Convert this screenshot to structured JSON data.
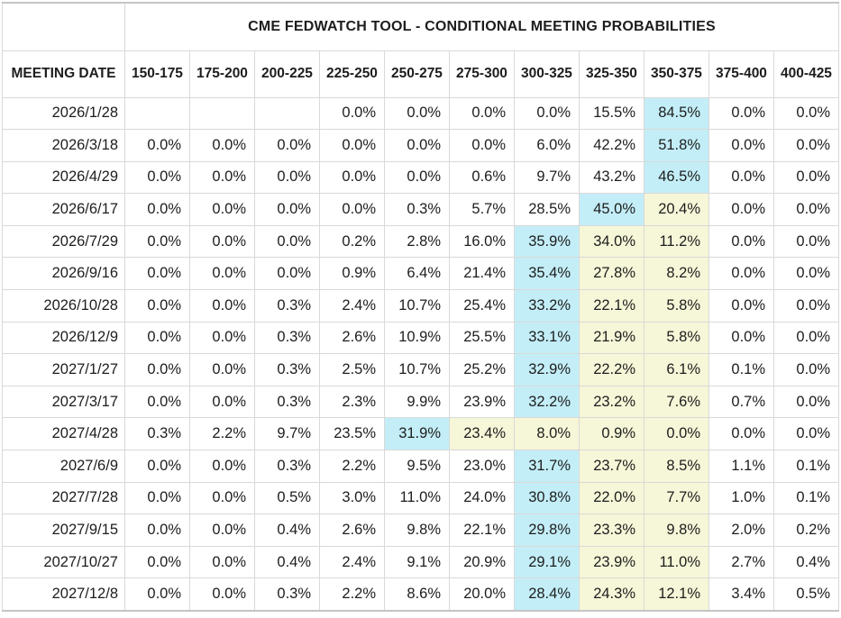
{
  "table": {
    "title": "CME FEDWATCH TOOL - CONDITIONAL MEETING PROBABILITIES",
    "date_column_header": "MEETING DATE",
    "rate_columns": [
      "150-175",
      "175-200",
      "200-225",
      "225-250",
      "250-275",
      "275-300",
      "300-325",
      "325-350",
      "350-375",
      "375-400",
      "400-425"
    ],
    "rows": [
      {
        "date": "2026/1/28",
        "values": [
          "",
          "",
          "",
          "0.0%",
          "0.0%",
          "0.0%",
          "0.0%",
          "15.5%",
          "84.5%",
          "0.0%",
          "0.0%"
        ],
        "max_index": 8,
        "path_indices": []
      },
      {
        "date": "2026/3/18",
        "values": [
          "0.0%",
          "0.0%",
          "0.0%",
          "0.0%",
          "0.0%",
          "0.0%",
          "6.0%",
          "42.2%",
          "51.8%",
          "0.0%",
          "0.0%"
        ],
        "max_index": 8,
        "path_indices": []
      },
      {
        "date": "2026/4/29",
        "values": [
          "0.0%",
          "0.0%",
          "0.0%",
          "0.0%",
          "0.0%",
          "0.6%",
          "9.7%",
          "43.2%",
          "46.5%",
          "0.0%",
          "0.0%"
        ],
        "max_index": 8,
        "path_indices": []
      },
      {
        "date": "2026/6/17",
        "values": [
          "0.0%",
          "0.0%",
          "0.0%",
          "0.0%",
          "0.3%",
          "5.7%",
          "28.5%",
          "45.0%",
          "20.4%",
          "0.0%",
          "0.0%"
        ],
        "max_index": 7,
        "path_indices": [
          8
        ]
      },
      {
        "date": "2026/7/29",
        "values": [
          "0.0%",
          "0.0%",
          "0.0%",
          "0.2%",
          "2.8%",
          "16.0%",
          "35.9%",
          "34.0%",
          "11.2%",
          "0.0%",
          "0.0%"
        ],
        "max_index": 6,
        "path_indices": [
          7,
          8
        ]
      },
      {
        "date": "2026/9/16",
        "values": [
          "0.0%",
          "0.0%",
          "0.0%",
          "0.9%",
          "6.4%",
          "21.4%",
          "35.4%",
          "27.8%",
          "8.2%",
          "0.0%",
          "0.0%"
        ],
        "max_index": 6,
        "path_indices": [
          7,
          8
        ]
      },
      {
        "date": "2026/10/28",
        "values": [
          "0.0%",
          "0.0%",
          "0.3%",
          "2.4%",
          "10.7%",
          "25.4%",
          "33.2%",
          "22.1%",
          "5.8%",
          "0.0%",
          "0.0%"
        ],
        "max_index": 6,
        "path_indices": [
          7,
          8
        ]
      },
      {
        "date": "2026/12/9",
        "values": [
          "0.0%",
          "0.0%",
          "0.3%",
          "2.6%",
          "10.9%",
          "25.5%",
          "33.1%",
          "21.9%",
          "5.8%",
          "0.0%",
          "0.0%"
        ],
        "max_index": 6,
        "path_indices": [
          7,
          8
        ]
      },
      {
        "date": "2027/1/27",
        "values": [
          "0.0%",
          "0.0%",
          "0.3%",
          "2.5%",
          "10.7%",
          "25.2%",
          "32.9%",
          "22.2%",
          "6.1%",
          "0.1%",
          "0.0%"
        ],
        "max_index": 6,
        "path_indices": [
          7,
          8
        ]
      },
      {
        "date": "2027/3/17",
        "values": [
          "0.0%",
          "0.0%",
          "0.3%",
          "2.3%",
          "9.9%",
          "23.9%",
          "32.2%",
          "23.2%",
          "7.6%",
          "0.7%",
          "0.0%"
        ],
        "max_index": 6,
        "path_indices": [
          7,
          8
        ]
      },
      {
        "date": "2027/4/28",
        "values": [
          "0.3%",
          "2.2%",
          "9.7%",
          "23.5%",
          "31.9%",
          "23.4%",
          "8.0%",
          "0.9%",
          "0.0%",
          "0.0%",
          "0.0%"
        ],
        "max_index": 4,
        "path_indices": [
          5,
          6,
          7,
          8
        ]
      },
      {
        "date": "2027/6/9",
        "values": [
          "0.0%",
          "0.0%",
          "0.3%",
          "2.2%",
          "9.5%",
          "23.0%",
          "31.7%",
          "23.7%",
          "8.5%",
          "1.1%",
          "0.1%"
        ],
        "max_index": 6,
        "path_indices": [
          7,
          8
        ]
      },
      {
        "date": "2027/7/28",
        "values": [
          "0.0%",
          "0.0%",
          "0.5%",
          "3.0%",
          "11.0%",
          "24.0%",
          "30.8%",
          "22.0%",
          "7.7%",
          "1.0%",
          "0.1%"
        ],
        "max_index": 6,
        "path_indices": [
          7,
          8
        ]
      },
      {
        "date": "2027/9/15",
        "values": [
          "0.0%",
          "0.0%",
          "0.4%",
          "2.6%",
          "9.8%",
          "22.1%",
          "29.8%",
          "23.3%",
          "9.8%",
          "2.0%",
          "0.2%"
        ],
        "max_index": 6,
        "path_indices": [
          7,
          8
        ]
      },
      {
        "date": "2027/10/27",
        "values": [
          "0.0%",
          "0.0%",
          "0.4%",
          "2.4%",
          "9.1%",
          "20.9%",
          "29.1%",
          "23.9%",
          "11.0%",
          "2.7%",
          "0.4%"
        ],
        "max_index": 6,
        "path_indices": [
          7,
          8
        ]
      },
      {
        "date": "2027/12/8",
        "values": [
          "0.0%",
          "0.0%",
          "0.3%",
          "2.2%",
          "8.6%",
          "20.0%",
          "28.4%",
          "24.3%",
          "12.1%",
          "3.4%",
          "0.5%"
        ],
        "max_index": 6,
        "path_indices": [
          7,
          8
        ]
      }
    ]
  },
  "colors": {
    "max_probability_highlight": "#c3eef7",
    "secondary_highlight": "#f6f6d8",
    "grid_line": "#d9d9d9",
    "outer_border": "#c5c5c5",
    "text": "#1d1d1d",
    "background": "#ffffff"
  }
}
